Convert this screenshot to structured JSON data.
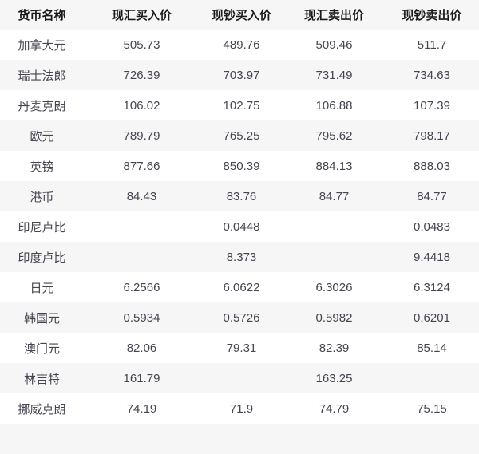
{
  "chart_data": {
    "type": "table",
    "columns": [
      "货币名称",
      "现汇买入价",
      "现钞买入价",
      "现汇卖出价",
      "现钞卖出价"
    ],
    "rows": [
      [
        "加拿大元",
        "505.73",
        "489.76",
        "509.46",
        "511.7"
      ],
      [
        "瑞士法郎",
        "726.39",
        "703.97",
        "731.49",
        "734.63"
      ],
      [
        "丹麦克朗",
        "106.02",
        "102.75",
        "106.88",
        "107.39"
      ],
      [
        "欧元",
        "789.79",
        "765.25",
        "795.62",
        "798.17"
      ],
      [
        "英镑",
        "877.66",
        "850.39",
        "884.13",
        "888.03"
      ],
      [
        "港币",
        "84.43",
        "83.76",
        "84.77",
        "84.77"
      ],
      [
        "印尼卢比",
        "",
        "0.0448",
        "",
        "0.0483"
      ],
      [
        "印度卢比",
        "",
        "8.373",
        "",
        "9.4418"
      ],
      [
        "日元",
        "6.2566",
        "6.0622",
        "6.3026",
        "6.3124"
      ],
      [
        "韩国元",
        "0.5934",
        "0.5726",
        "0.5982",
        "0.6201"
      ],
      [
        "澳门元",
        "82.06",
        "79.31",
        "82.39",
        "85.14"
      ],
      [
        "林吉特",
        "161.79",
        "",
        "163.25",
        ""
      ],
      [
        "挪威克朗",
        "74.19",
        "71.9",
        "74.79",
        "75.15"
      ]
    ],
    "layout": {
      "grid": false,
      "striped": true,
      "stripe_pattern": "even-data-rows-gray"
    }
  },
  "colors": {
    "header_bg": "#f6f6f6",
    "stripe_bg": "#f6f6f6",
    "row_bg": "#ffffff",
    "header_text": "#1b1b1b",
    "text": "#44454f"
  }
}
